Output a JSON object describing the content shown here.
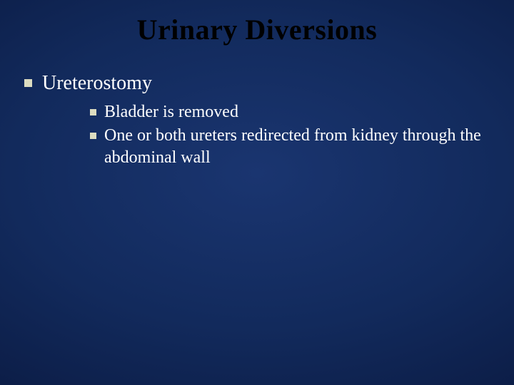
{
  "slide": {
    "title": "Urinary Diversions",
    "background_gradient": {
      "inner": "#1a3570",
      "mid": "#122a5c",
      "outer": "#061230"
    },
    "title_color": "#000000",
    "title_fontsize": 40,
    "text_color": "#ffffff",
    "bullet_color": "#dcdcc0",
    "level1_fontsize": 28,
    "level2_fontsize": 24,
    "bullets": [
      {
        "text": "Ureterostomy",
        "children": [
          {
            "text": "Bladder is removed"
          },
          {
            "text": "One or both ureters redirected from kidney through the abdominal wall"
          }
        ]
      }
    ]
  }
}
